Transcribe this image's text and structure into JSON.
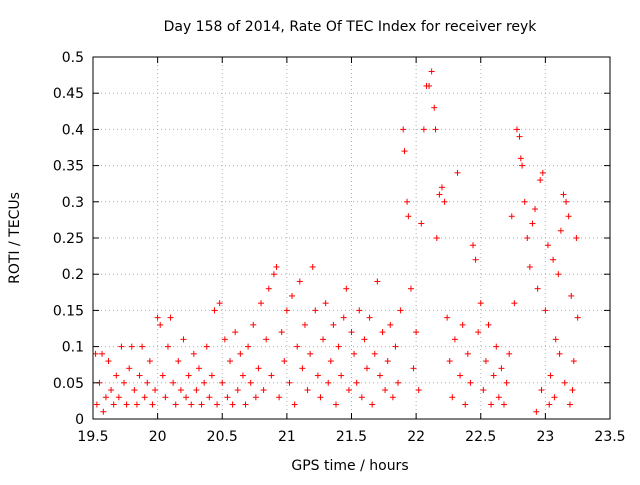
{
  "chart_data": {
    "type": "scatter",
    "title": "Day 158 of 2014, Rate Of TEC Index for receiver reyk",
    "xlabel": "GPS time / hours",
    "ylabel": "ROTI / TECUs",
    "xlim": [
      19.5,
      23.5
    ],
    "ylim": [
      0,
      0.5
    ],
    "x_ticks": [
      19.5,
      20,
      20.5,
      21,
      21.5,
      22,
      22.5,
      23,
      23.5
    ],
    "x_tick_labels": [
      "19.5",
      "20",
      "20.5",
      "21",
      "21.5",
      "22",
      "22.5",
      "23",
      "23.5"
    ],
    "y_ticks": [
      0,
      0.05,
      0.1,
      0.15,
      0.2,
      0.25,
      0.3,
      0.35,
      0.4,
      0.45,
      0.5
    ],
    "y_tick_labels": [
      "0",
      "0.05",
      "0.1",
      "0.15",
      "0.2",
      "0.25",
      "0.3",
      "0.35",
      "0.4",
      "0.45",
      "0.5"
    ],
    "grid": true,
    "marker": "+",
    "color": "#ff0000",
    "series": [
      {
        "name": "ROTI",
        "points": [
          [
            19.52,
            0.09
          ],
          [
            19.53,
            0.02
          ],
          [
            19.55,
            0.05
          ],
          [
            19.57,
            0.09
          ],
          [
            19.58,
            0.01
          ],
          [
            19.6,
            0.03
          ],
          [
            19.62,
            0.08
          ],
          [
            19.64,
            0.04
          ],
          [
            19.66,
            0.02
          ],
          [
            19.68,
            0.06
          ],
          [
            19.7,
            0.03
          ],
          [
            19.72,
            0.1
          ],
          [
            19.74,
            0.05
          ],
          [
            19.76,
            0.02
          ],
          [
            19.78,
            0.07
          ],
          [
            19.8,
            0.1
          ],
          [
            19.82,
            0.04
          ],
          [
            19.84,
            0.02
          ],
          [
            19.86,
            0.06
          ],
          [
            19.88,
            0.1
          ],
          [
            19.9,
            0.03
          ],
          [
            19.92,
            0.05
          ],
          [
            19.94,
            0.08
          ],
          [
            19.96,
            0.02
          ],
          [
            19.98,
            0.04
          ],
          [
            20.0,
            0.14
          ],
          [
            20.02,
            0.13
          ],
          [
            20.04,
            0.06
          ],
          [
            20.06,
            0.03
          ],
          [
            20.08,
            0.1
          ],
          [
            20.1,
            0.14
          ],
          [
            20.12,
            0.05
          ],
          [
            20.14,
            0.02
          ],
          [
            20.16,
            0.08
          ],
          [
            20.18,
            0.04
          ],
          [
            20.2,
            0.11
          ],
          [
            20.22,
            0.03
          ],
          [
            20.24,
            0.06
          ],
          [
            20.26,
            0.02
          ],
          [
            20.28,
            0.09
          ],
          [
            20.3,
            0.04
          ],
          [
            20.32,
            0.07
          ],
          [
            20.34,
            0.02
          ],
          [
            20.36,
            0.05
          ],
          [
            20.38,
            0.1
          ],
          [
            20.4,
            0.03
          ],
          [
            20.42,
            0.06
          ],
          [
            20.44,
            0.15
          ],
          [
            20.46,
            0.02
          ],
          [
            20.48,
            0.16
          ],
          [
            20.5,
            0.05
          ],
          [
            20.52,
            0.11
          ],
          [
            20.54,
            0.03
          ],
          [
            20.56,
            0.08
          ],
          [
            20.58,
            0.02
          ],
          [
            20.6,
            0.12
          ],
          [
            20.62,
            0.04
          ],
          [
            20.64,
            0.09
          ],
          [
            20.66,
            0.06
          ],
          [
            20.68,
            0.02
          ],
          [
            20.7,
            0.1
          ],
          [
            20.72,
            0.05
          ],
          [
            20.74,
            0.13
          ],
          [
            20.76,
            0.03
          ],
          [
            20.78,
            0.07
          ],
          [
            20.8,
            0.16
          ],
          [
            20.82,
            0.04
          ],
          [
            20.84,
            0.11
          ],
          [
            20.86,
            0.18
          ],
          [
            20.88,
            0.06
          ],
          [
            20.9,
            0.2
          ],
          [
            20.92,
            0.21
          ],
          [
            20.94,
            0.03
          ],
          [
            20.96,
            0.12
          ],
          [
            20.98,
            0.08
          ],
          [
            21.0,
            0.15
          ],
          [
            21.02,
            0.05
          ],
          [
            21.04,
            0.17
          ],
          [
            21.06,
            0.02
          ],
          [
            21.08,
            0.1
          ],
          [
            21.1,
            0.19
          ],
          [
            21.12,
            0.07
          ],
          [
            21.14,
            0.13
          ],
          [
            21.16,
            0.04
          ],
          [
            21.18,
            0.09
          ],
          [
            21.2,
            0.21
          ],
          [
            21.22,
            0.15
          ],
          [
            21.24,
            0.06
          ],
          [
            21.26,
            0.03
          ],
          [
            21.28,
            0.11
          ],
          [
            21.3,
            0.16
          ],
          [
            21.32,
            0.05
          ],
          [
            21.34,
            0.08
          ],
          [
            21.36,
            0.13
          ],
          [
            21.38,
            0.02
          ],
          [
            21.4,
            0.1
          ],
          [
            21.42,
            0.06
          ],
          [
            21.44,
            0.14
          ],
          [
            21.46,
            0.18
          ],
          [
            21.48,
            0.04
          ],
          [
            21.5,
            0.12
          ],
          [
            21.52,
            0.09
          ],
          [
            21.54,
            0.05
          ],
          [
            21.56,
            0.15
          ],
          [
            21.58,
            0.03
          ],
          [
            21.6,
            0.11
          ],
          [
            21.62,
            0.07
          ],
          [
            21.64,
            0.14
          ],
          [
            21.66,
            0.02
          ],
          [
            21.68,
            0.09
          ],
          [
            21.7,
            0.19
          ],
          [
            21.72,
            0.06
          ],
          [
            21.74,
            0.12
          ],
          [
            21.76,
            0.04
          ],
          [
            21.78,
            0.08
          ],
          [
            21.8,
            0.13
          ],
          [
            21.82,
            0.03
          ],
          [
            21.84,
            0.1
          ],
          [
            21.86,
            0.05
          ],
          [
            21.88,
            0.15
          ],
          [
            21.9,
            0.4
          ],
          [
            21.91,
            0.37
          ],
          [
            21.93,
            0.3
          ],
          [
            21.94,
            0.28
          ],
          [
            21.96,
            0.18
          ],
          [
            21.98,
            0.07
          ],
          [
            22.0,
            0.12
          ],
          [
            22.02,
            0.04
          ],
          [
            22.04,
            0.27
          ],
          [
            22.06,
            0.4
          ],
          [
            22.08,
            0.46
          ],
          [
            22.1,
            0.46
          ],
          [
            22.12,
            0.48
          ],
          [
            22.14,
            0.43
          ],
          [
            22.15,
            0.4
          ],
          [
            22.16,
            0.25
          ],
          [
            22.18,
            0.31
          ],
          [
            22.2,
            0.32
          ],
          [
            22.22,
            0.3
          ],
          [
            22.24,
            0.14
          ],
          [
            22.26,
            0.08
          ],
          [
            22.28,
            0.03
          ],
          [
            22.3,
            0.11
          ],
          [
            22.32,
            0.34
          ],
          [
            22.34,
            0.06
          ],
          [
            22.36,
            0.13
          ],
          [
            22.38,
            0.02
          ],
          [
            22.4,
            0.09
          ],
          [
            22.42,
            0.05
          ],
          [
            22.44,
            0.24
          ],
          [
            22.46,
            0.22
          ],
          [
            22.48,
            0.12
          ],
          [
            22.5,
            0.16
          ],
          [
            22.52,
            0.04
          ],
          [
            22.54,
            0.08
          ],
          [
            22.56,
            0.13
          ],
          [
            22.58,
            0.02
          ],
          [
            22.6,
            0.06
          ],
          [
            22.62,
            0.1
          ],
          [
            22.64,
            0.03
          ],
          [
            22.66,
            0.07
          ],
          [
            22.68,
            0.02
          ],
          [
            22.7,
            0.05
          ],
          [
            22.72,
            0.09
          ],
          [
            22.74,
            0.28
          ],
          [
            22.76,
            0.16
          ],
          [
            22.78,
            0.4
          ],
          [
            22.8,
            0.39
          ],
          [
            22.81,
            0.36
          ],
          [
            22.82,
            0.35
          ],
          [
            22.84,
            0.3
          ],
          [
            22.86,
            0.25
          ],
          [
            22.88,
            0.21
          ],
          [
            22.9,
            0.27
          ],
          [
            22.92,
            0.29
          ],
          [
            22.94,
            0.18
          ],
          [
            22.96,
            0.33
          ],
          [
            22.98,
            0.34
          ],
          [
            23.0,
            0.15
          ],
          [
            23.02,
            0.24
          ],
          [
            23.04,
            0.06
          ],
          [
            23.06,
            0.22
          ],
          [
            23.08,
            0.11
          ],
          [
            23.1,
            0.2
          ],
          [
            23.12,
            0.26
          ],
          [
            23.14,
            0.31
          ],
          [
            23.16,
            0.3
          ],
          [
            23.18,
            0.28
          ],
          [
            23.2,
            0.17
          ],
          [
            23.22,
            0.08
          ],
          [
            23.24,
            0.25
          ],
          [
            23.25,
            0.14
          ],
          [
            23.21,
            0.04
          ],
          [
            23.19,
            0.02
          ],
          [
            23.15,
            0.05
          ],
          [
            23.11,
            0.09
          ],
          [
            23.07,
            0.03
          ],
          [
            23.03,
            0.02
          ],
          [
            22.97,
            0.04
          ],
          [
            22.93,
            0.01
          ]
        ]
      }
    ]
  }
}
